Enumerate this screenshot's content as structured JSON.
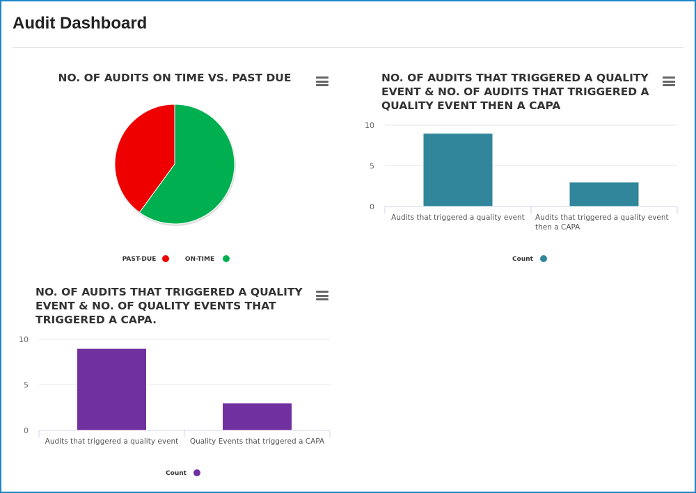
{
  "header": {
    "title": "Audit Dashboard"
  },
  "chart_data": [
    {
      "type": "pie",
      "title": "NO. OF AUDITS ON TIME VS. PAST DUE",
      "categories": [
        "PAST-DUE",
        "ON-TIME"
      ],
      "values": [
        40,
        60
      ],
      "colors": [
        "#ee0000",
        "#00b050"
      ],
      "legend": "bottom"
    },
    {
      "type": "bar",
      "title": "NO. OF AUDITS THAT TRIGGERED A QUALITY EVENT & NO. OF AUDITS THAT TRIGGERED A QUALITY EVENT THEN A CAPA",
      "title_lines": [
        "NO. OF AUDITS THAT TRIGGERED A QUALITY",
        "EVENT & NO. OF AUDITS THAT TRIGGERED A",
        "QUALITY EVENT THEN A CAPA"
      ],
      "categories": [
        [
          "Audits that triggered a quality event"
        ],
        [
          "Audits that triggered a quality event",
          "then a CAPA"
        ]
      ],
      "series": [
        {
          "name": "Count",
          "values": [
            9,
            3
          ]
        }
      ],
      "color": "#31869b",
      "ylim": [
        0,
        10
      ],
      "yticks": [
        0,
        5,
        10
      ],
      "grid": true,
      "legend": "bottom"
    },
    {
      "type": "bar",
      "title": "NO. OF AUDITS THAT TRIGGERED A QUALITY EVENT & NO. OF QUALITY EVENTS THAT TRIGGERED A CAPA.",
      "title_lines": [
        "NO. OF AUDITS THAT TRIGGERED A QUALITY",
        "EVENT & NO. OF QUALITY EVENTS THAT",
        "TRIGGERED A CAPA."
      ],
      "categories": [
        [
          "Audits that triggered a quality event"
        ],
        [
          "Quality Events that triggered a CAPA"
        ]
      ],
      "series": [
        {
          "name": "Count",
          "values": [
            9,
            3
          ]
        }
      ],
      "color": "#7030a0",
      "ylim": [
        0,
        10
      ],
      "yticks": [
        0,
        5,
        10
      ],
      "grid": true,
      "legend": "bottom"
    }
  ],
  "icons": {
    "menu": "hamburger-menu-icon"
  }
}
